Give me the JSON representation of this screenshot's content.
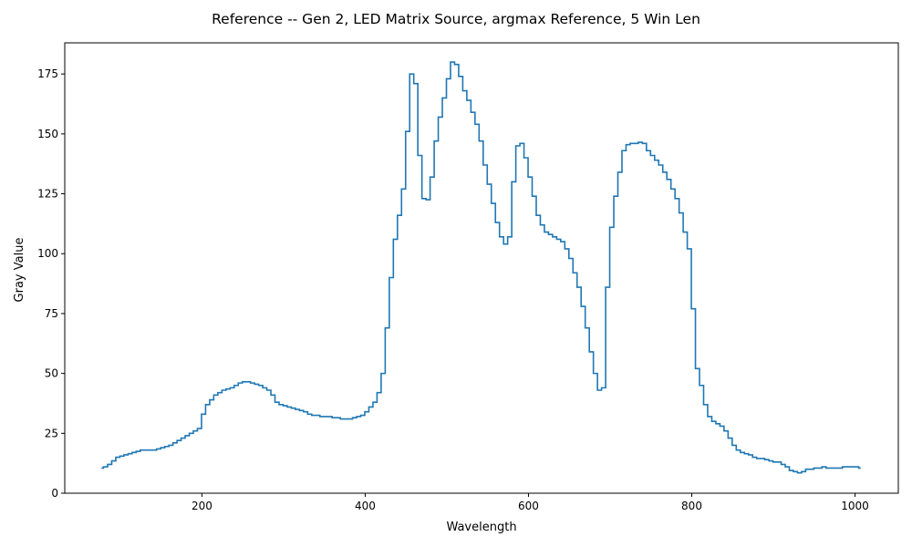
{
  "chart_data": {
    "type": "line",
    "drawstyle": "steps-mid",
    "title": "Reference -- Gen 2, LED Matrix Source, argmax Reference, 5 Win Len",
    "xlabel": "Wavelength",
    "ylabel": "Gray Value",
    "xlim": [
      32,
      1053
    ],
    "ylim": [
      0,
      188
    ],
    "xticks": [
      200,
      400,
      600,
      800,
      1000
    ],
    "yticks": [
      0,
      25,
      50,
      75,
      100,
      125,
      150,
      175
    ],
    "grid": false,
    "legend": "none",
    "line_color": "#1f77b4",
    "series": [
      {
        "x": [
          77,
          82,
          87,
          92,
          97,
          102,
          107,
          112,
          117,
          122,
          127,
          132,
          137,
          142,
          147,
          152,
          157,
          162,
          167,
          172,
          177,
          182,
          187,
          192,
          197,
          202,
          207,
          212,
          217,
          222,
          227,
          232,
          237,
          242,
          247,
          252,
          257,
          262,
          267,
          272,
          277,
          282,
          287,
          292,
          297,
          302,
          307,
          312,
          317,
          322,
          327,
          332,
          337,
          342,
          347,
          352,
          357,
          362,
          367,
          372,
          377,
          382,
          387,
          392,
          397,
          402,
          407,
          412,
          417,
          422,
          427,
          432,
          437,
          442,
          447,
          452,
          457,
          462,
          467,
          472,
          477,
          482,
          487,
          492,
          497,
          502,
          507,
          512,
          517,
          522,
          527,
          532,
          537,
          542,
          547,
          552,
          557,
          562,
          567,
          572,
          577,
          582,
          587,
          592,
          597,
          602,
          607,
          612,
          617,
          622,
          627,
          632,
          637,
          642,
          647,
          652,
          657,
          662,
          667,
          672,
          677,
          682,
          687,
          692,
          697,
          702,
          707,
          712,
          717,
          722,
          727,
          732,
          737,
          742,
          747,
          752,
          757,
          762,
          767,
          772,
          777,
          782,
          787,
          792,
          797,
          802,
          807,
          812,
          817,
          822,
          827,
          832,
          837,
          842,
          847,
          852,
          857,
          862,
          867,
          872,
          877,
          882,
          887,
          892,
          897,
          902,
          907,
          912,
          917,
          922,
          927,
          932,
          937,
          942,
          947,
          952,
          957,
          962,
          967,
          972,
          977,
          982,
          987,
          992,
          997,
          1002,
          1007
        ],
        "values": [
          10.5,
          11,
          12,
          13.5,
          15,
          15.5,
          16,
          16.5,
          17,
          17.5,
          18,
          18,
          18,
          18,
          18.5,
          19,
          19.5,
          20,
          21,
          22,
          23,
          24,
          25,
          26,
          27,
          33,
          37,
          39,
          41,
          42,
          43,
          43.5,
          44,
          45,
          46,
          46.5,
          46.5,
          46,
          45.5,
          45,
          44,
          43,
          41,
          38,
          37,
          36.5,
          36,
          35.5,
          35,
          34.5,
          34,
          33,
          32.5,
          32.5,
          32,
          32,
          32,
          31.5,
          31.5,
          31,
          31,
          31,
          31.5,
          32,
          32.5,
          34,
          36,
          38,
          42,
          50,
          69,
          90,
          106,
          116,
          127,
          151,
          175,
          171,
          141,
          123,
          122.5,
          132,
          147,
          157,
          165,
          173,
          180,
          179,
          174,
          168,
          164,
          159,
          154,
          147,
          137,
          129,
          121,
          113,
          107,
          104,
          107,
          130,
          145,
          146,
          140,
          132,
          124,
          116,
          112,
          109,
          108,
          107,
          106,
          105,
          102,
          98,
          92,
          86,
          78,
          69,
          59,
          50,
          43,
          44,
          86,
          111,
          124,
          134,
          143,
          145.5,
          146,
          146,
          146.5,
          146,
          143,
          141,
          139,
          137,
          134,
          131,
          127,
          123,
          117,
          109,
          102,
          77,
          52,
          45,
          37,
          32,
          30,
          29,
          28,
          26,
          23,
          20,
          18,
          17,
          16.5,
          16,
          15,
          14.5,
          14.5,
          14,
          13.5,
          13,
          13,
          12,
          11,
          9.5,
          9,
          8.5,
          9,
          10,
          10,
          10.5,
          10.5,
          11,
          10.5,
          10.5,
          10.5,
          10.5,
          11,
          11,
          11,
          11,
          10.5
        ]
      }
    ]
  }
}
